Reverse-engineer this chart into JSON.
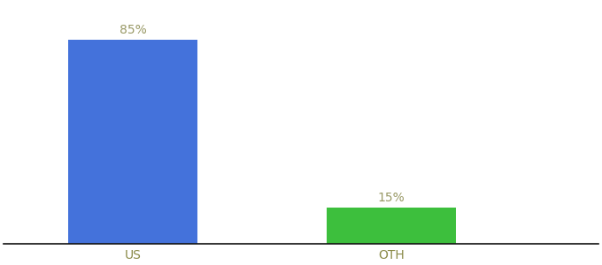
{
  "categories": [
    "US",
    "OTH"
  ],
  "values": [
    85,
    15
  ],
  "bar_colors": [
    "#4472db",
    "#3dbf3d"
  ],
  "label_color": "#999966",
  "label_texts": [
    "85%",
    "15%"
  ],
  "ylim": [
    0,
    100
  ],
  "background_color": "#ffffff",
  "label_fontsize": 10,
  "tick_fontsize": 10,
  "bar_width": 0.5,
  "x_positions": [
    1,
    2
  ],
  "xlim": [
    0.5,
    2.8
  ]
}
